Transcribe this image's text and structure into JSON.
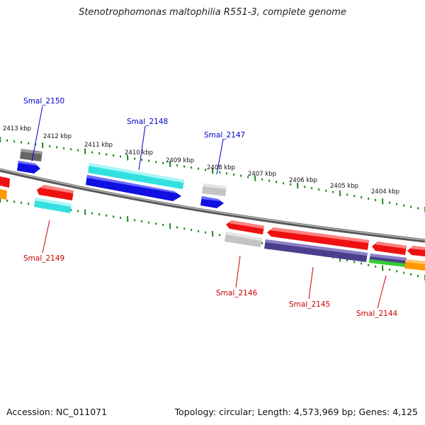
{
  "title": "Stenotrophomonas maltophilia R551-3, complete genome",
  "footer": {
    "accession": "Accession: NC_011071",
    "summary": "Topology: circular; Length: 4,573,969 bp; Genes: 4,125"
  },
  "kbp_labels": [
    "2413 kbp",
    "2412 kbp",
    "2411 kbp",
    "2410 kbp",
    "2409 kbp",
    "2408 kbp",
    "2407 kbp",
    "2406 kbp",
    "2405 kbp",
    "2404 kbp"
  ],
  "gene_labels": {
    "smal_2150": "Smal_2150",
    "smal_2148": "Smal_2148",
    "smal_2147": "Smal_2147",
    "smal_2149": "Smal_2149",
    "smal_2146": "Smal_2146",
    "smal_2145": "Smal_2145",
    "smal_2144": "Smal_2144"
  },
  "colors": {
    "forward_label": "#0000cc",
    "reverse_label": "#cc0000",
    "tick": "#1a8a1a",
    "backbone": "#888888",
    "gene_blue": "#1010e0",
    "gene_cyan": "#33e0e0",
    "gene_red": "#ee1111",
    "gene_gray_dark": "#666666",
    "gene_gray_light": "#c4c4c4",
    "gene_purple": "#4a3f8c",
    "gene_green": "#33cc33",
    "gene_orange": "#ff9900"
  }
}
